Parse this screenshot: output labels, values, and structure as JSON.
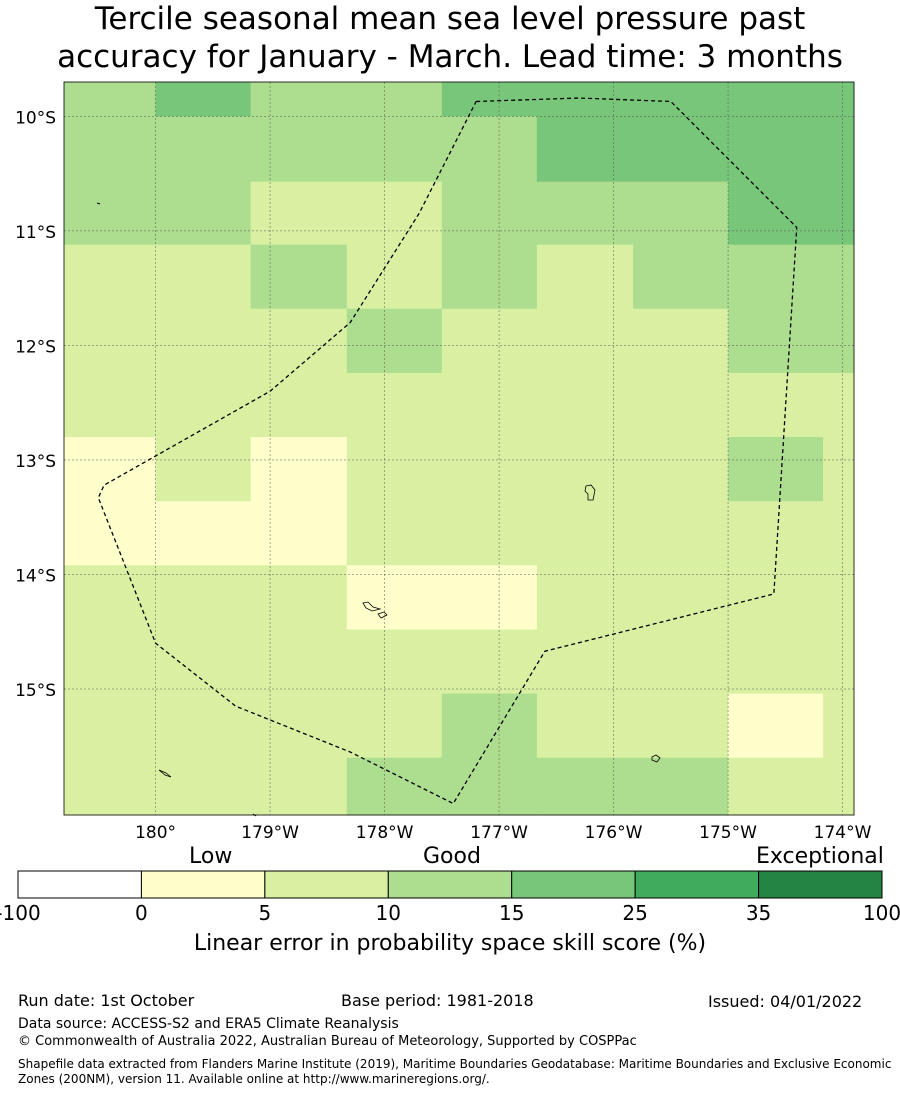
{
  "title_line1": "Tercile seasonal mean sea level pressure past",
  "title_line2": "accuracy for January - March. Lead time: 3 months",
  "map": {
    "lon_range": [
      180.8,
      173.9
    ],
    "lat_range": [
      -9.7,
      -16.1
    ],
    "lat_ticks": [
      {
        "value": -10,
        "label": "10°S"
      },
      {
        "value": -11,
        "label": "11°S"
      },
      {
        "value": -12,
        "label": "12°S"
      },
      {
        "value": -13,
        "label": "13°S"
      },
      {
        "value": -14,
        "label": "14°S"
      },
      {
        "value": -15,
        "label": "15°S"
      }
    ],
    "lon_ticks": [
      {
        "value": 180,
        "label": "180°"
      },
      {
        "value": 179,
        "label": "179°W"
      },
      {
        "value": 178,
        "label": "178°W"
      },
      {
        "value": 177,
        "label": "177°W"
      },
      {
        "value": 176,
        "label": "176°W"
      },
      {
        "value": 175,
        "label": "175°W"
      },
      {
        "value": 174,
        "label": "174°W"
      }
    ],
    "grid_note": "score classes per grid cell, rows north to south, columns west to east",
    "cell_lat_edges": [
      -9.7,
      -10.0,
      -10.57,
      -11.12,
      -11.68,
      -12.24,
      -12.8,
      -13.36,
      -13.92,
      -14.48,
      -15.04,
      -15.6,
      -16.1
    ],
    "cell_lon_edges": [
      180.8,
      180.0,
      179.17,
      178.33,
      177.5,
      176.67,
      175.83,
      175.0,
      174.17,
      173.9
    ],
    "cells": [
      [
        3,
        4,
        3,
        3,
        4,
        4,
        4,
        4,
        4
      ],
      [
        3,
        3,
        3,
        3,
        3,
        4,
        4,
        4,
        4
      ],
      [
        3,
        3,
        2,
        2,
        3,
        3,
        3,
        4,
        4
      ],
      [
        2,
        2,
        3,
        2,
        3,
        2,
        3,
        3,
        3
      ],
      [
        2,
        2,
        2,
        3,
        2,
        2,
        2,
        3,
        3
      ],
      [
        2,
        2,
        2,
        2,
        2,
        2,
        2,
        2,
        2
      ],
      [
        1,
        2,
        1,
        2,
        2,
        2,
        2,
        3,
        2
      ],
      [
        1,
        1,
        1,
        2,
        2,
        2,
        2,
        2,
        2
      ],
      [
        2,
        2,
        2,
        1,
        1,
        2,
        2,
        2,
        2
      ],
      [
        2,
        2,
        2,
        2,
        2,
        2,
        2,
        2,
        2
      ],
      [
        2,
        2,
        2,
        2,
        3,
        2,
        2,
        1,
        2
      ],
      [
        2,
        2,
        2,
        3,
        3,
        3,
        3,
        2,
        2
      ]
    ],
    "eez_boundary": [
      [
        177.2,
        -9.87
      ],
      [
        176.3,
        -9.84
      ],
      [
        175.5,
        -9.87
      ],
      [
        174.4,
        -10.97
      ],
      [
        174.6,
        -14.17
      ],
      [
        176.6,
        -14.67
      ],
      [
        177.4,
        -16.0
      ],
      [
        178.3,
        -15.55
      ],
      [
        179.3,
        -15.15
      ],
      [
        180.0,
        -14.6
      ],
      [
        180.5,
        -13.33
      ],
      [
        180.45,
        -13.22
      ],
      [
        179.0,
        -12.4
      ],
      [
        178.3,
        -11.8
      ],
      [
        177.7,
        -10.85
      ]
    ]
  },
  "legend": {
    "category_labels": [
      "Low",
      "Good",
      "Exceptional"
    ],
    "colors": [
      "#ffffff",
      "#ffffcc",
      "#d9f0a3",
      "#addd8e",
      "#78c679",
      "#41ab5d",
      "#238443"
    ],
    "ticks": [
      "-100",
      "0",
      "5",
      "10",
      "15",
      "25",
      "35",
      "100"
    ],
    "title": "Linear error in probability space skill score (%)"
  },
  "footer": {
    "run_date": "Run date: 1st October",
    "base_period": "Base period: 1981-2018",
    "issued": "Issued: 04/01/2022",
    "data_source": "Data source: ACCESS-S2 and ERA5 Climate Reanalysis",
    "copyright": "© Commonwealth of Australia 2022, Australian Bureau of Meteorology, Supported by COSPPac",
    "shapefile": "Shapefile data extracted from Flanders Marine Institute (2019), Maritime Boundaries Geodatabase: Maritime Boundaries and Exclusive Economic Zones (200NM), version 11. Available online at http://www.marineregions.org/."
  }
}
